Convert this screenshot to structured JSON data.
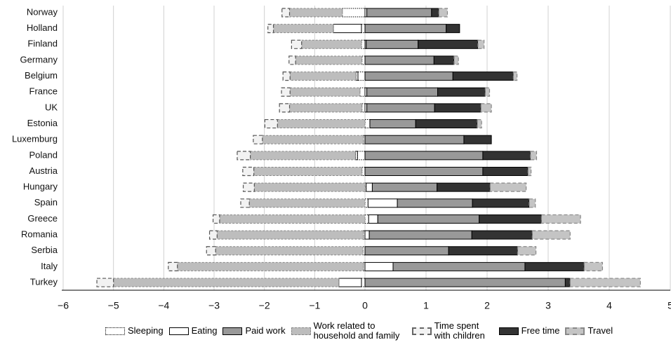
{
  "chart_data": {
    "type": "bar",
    "orientation": "horizontal",
    "stacked": true,
    "categories": [
      "Norway",
      "Holland",
      "Finland",
      "Germany",
      "Belgium",
      "France",
      "UK",
      "Estonia",
      "Luxemburg",
      "Poland",
      "Austria",
      "Hungary",
      "Spain",
      "Greece",
      "Romania",
      "Serbia",
      "Italy",
      "Turkey"
    ],
    "series": [
      {
        "name": "Sleeping",
        "color": "#ffffff",
        "values": [
          -0.45,
          -0.07,
          -0.07,
          -0.06,
          -0.14,
          -0.1,
          -0.06,
          0.08,
          -0.03,
          -0.15,
          -0.06,
          0.02,
          0.05,
          0.06,
          -0.03,
          -0.04,
          -0.03,
          -0.07
        ]
      },
      {
        "name": "Eating",
        "color": "#ffffff",
        "values": [
          0.03,
          -0.56,
          0.02,
          0,
          -0.04,
          0.03,
          0.03,
          0,
          0,
          -0.04,
          0,
          0.1,
          0.48,
          0.15,
          0.07,
          0,
          0.46,
          -0.45
        ]
      },
      {
        "name": "Paid work",
        "color": "#999999",
        "values": [
          1.06,
          1.33,
          0.85,
          1.13,
          1.44,
          1.16,
          1.11,
          0.75,
          1.62,
          1.93,
          1.93,
          1.06,
          1.23,
          1.66,
          1.68,
          1.37,
          2.16,
          3.28
        ]
      },
      {
        "name": "Work related to household and family",
        "color": "#bdbdbd",
        "values": [
          -1.05,
          -1.19,
          -1.19,
          -1.32,
          -1.31,
          -1.39,
          -1.44,
          -1.74,
          -2.01,
          -2.09,
          -2.15,
          -2.2,
          -2.3,
          -2.89,
          -2.91,
          -2.93,
          -3.7,
          -4.48
        ]
      },
      {
        "name": "Time spent with children",
        "color": "#f2f2f2",
        "values": [
          -0.15,
          -0.11,
          -0.2,
          -0.13,
          -0.14,
          -0.17,
          -0.2,
          -0.25,
          -0.18,
          -0.26,
          -0.22,
          -0.22,
          -0.17,
          -0.13,
          -0.15,
          -0.18,
          -0.18,
          -0.33
        ]
      },
      {
        "name": "Free time",
        "color": "#333333",
        "values": [
          0.12,
          0.22,
          0.98,
          0.33,
          0.99,
          0.78,
          0.76,
          1.01,
          0.45,
          0.78,
          0.74,
          0.87,
          0.93,
          1.02,
          0.99,
          1.13,
          0.97,
          0.08
        ]
      },
      {
        "name": "Travel",
        "color": "#c4c4c4",
        "values": [
          0.14,
          0,
          0.1,
          0.07,
          0.06,
          0.07,
          0.17,
          0.07,
          0,
          0.1,
          0.05,
          0.59,
          0.1,
          0.64,
          0.62,
          0.3,
          0.3,
          1.15
        ]
      }
    ],
    "xlim": [
      -6,
      5
    ],
    "xticks": [
      {
        "value": -6,
        "label": "−6"
      },
      {
        "value": -5,
        "label": "−5"
      },
      {
        "value": -4,
        "label": "−4"
      },
      {
        "value": -3,
        "label": "−3"
      },
      {
        "value": -2,
        "label": "−2"
      },
      {
        "value": -1,
        "label": "−1"
      },
      0,
      1,
      2,
      3,
      4,
      5
    ],
    "grid": true
  }
}
